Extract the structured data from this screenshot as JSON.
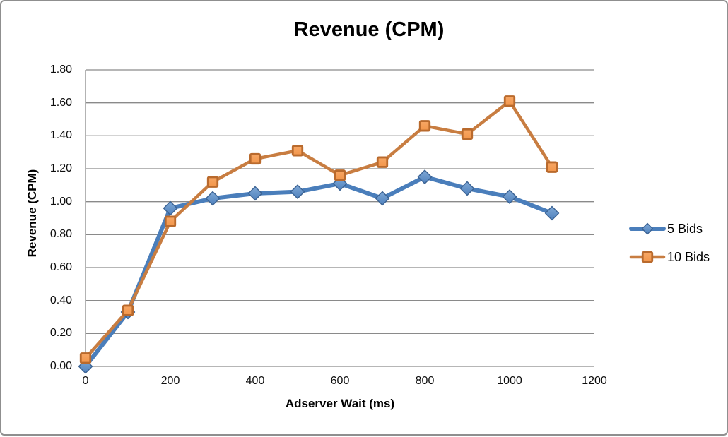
{
  "window": {
    "background": "#ffffff",
    "border_color": "#8f8f8f"
  },
  "chart_data": {
    "type": "line",
    "title": "Revenue (CPM)",
    "xlabel": "Adserver Wait (ms)",
    "ylabel": "Revenue (CPM)",
    "x": [
      0,
      100,
      200,
      300,
      400,
      500,
      600,
      700,
      800,
      900,
      1000,
      1100
    ],
    "series": [
      {
        "name": "5 Bids",
        "marker": "diamond",
        "line_color": "#4A7EBB",
        "marker_fill_light": "#7FA8D6",
        "marker_fill": "#4F81BD",
        "marker_edge": "#3A6293",
        "values": [
          0.0,
          0.33,
          0.96,
          1.02,
          1.05,
          1.06,
          1.11,
          1.02,
          1.15,
          1.08,
          1.03,
          0.93
        ]
      },
      {
        "name": "10 Bids",
        "marker": "square",
        "line_color": "#C87D41",
        "marker_fill_light": "#F7A765",
        "marker_fill": "#F2964B",
        "marker_edge": "#B96A2D",
        "values": [
          0.05,
          0.34,
          0.88,
          1.12,
          1.26,
          1.31,
          1.16,
          1.24,
          1.46,
          1.41,
          1.61,
          1.21
        ]
      }
    ],
    "xlim": [
      0,
      1200
    ],
    "ylim": [
      0,
      1.8
    ],
    "x_tick_labels": [
      "0",
      "200",
      "400",
      "600",
      "800",
      "1000",
      "1200"
    ],
    "y_tick_labels": [
      "0.00",
      "0.20",
      "0.40",
      "0.60",
      "0.80",
      "1.00",
      "1.20",
      "1.40",
      "1.60",
      "1.80"
    ],
    "grid": true,
    "gridline_color": "#8a8a8a",
    "axis_line_color": "#8a8a8a",
    "legend_position": "right"
  }
}
